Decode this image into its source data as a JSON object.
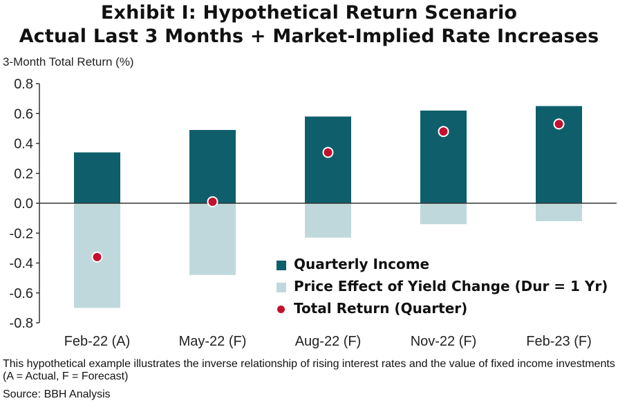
{
  "title_line1": "Exhibit I: Hypothetical Return Scenario",
  "title_line2": "Actual Last 3 Months + Market-Implied Rate Increases",
  "colors": {
    "income": "#0e5f6b",
    "price_effect": "#bfd8db",
    "total_return": "#c3102e",
    "axis": "#333333",
    "text": "#111111"
  },
  "chart_data": {
    "type": "bar",
    "ylabel": "3-Month Total Return (%)",
    "xlabel": "",
    "ylim": [
      -0.8,
      0.8
    ],
    "yticks": [
      0.8,
      0.6,
      0.4,
      0.2,
      0.0,
      -0.2,
      -0.4,
      -0.6,
      -0.8
    ],
    "ytick_labels": [
      "0.8",
      "0.6",
      "0.4",
      "0.2",
      "0.0",
      "-0.2",
      "-0.4",
      "-0.6",
      "-0.8"
    ],
    "categories": [
      "Feb-22 (A)",
      "May-22 (F)",
      "Aug-22 (F)",
      "Nov-22 (F)",
      "Feb-23 (F)"
    ],
    "series": [
      {
        "name": "Quarterly Income",
        "kind": "bar",
        "values": [
          0.34,
          0.49,
          0.58,
          0.62,
          0.65
        ]
      },
      {
        "name": "Price Effect of Yield Change (Dur = 1 Yr)",
        "kind": "bar",
        "values": [
          -0.7,
          -0.48,
          -0.23,
          -0.14,
          -0.12
        ]
      },
      {
        "name": "Total Return (Quarter)",
        "kind": "marker",
        "values": [
          -0.36,
          0.01,
          0.34,
          0.48,
          0.53
        ]
      }
    ],
    "legend_position": "lower-right"
  },
  "footnote": "This hypothetical example illustrates the inverse relationship of rising interest rates and the value of fixed income investments (A = Actual, F = Forecast)",
  "source": "Source: BBH Analysis"
}
